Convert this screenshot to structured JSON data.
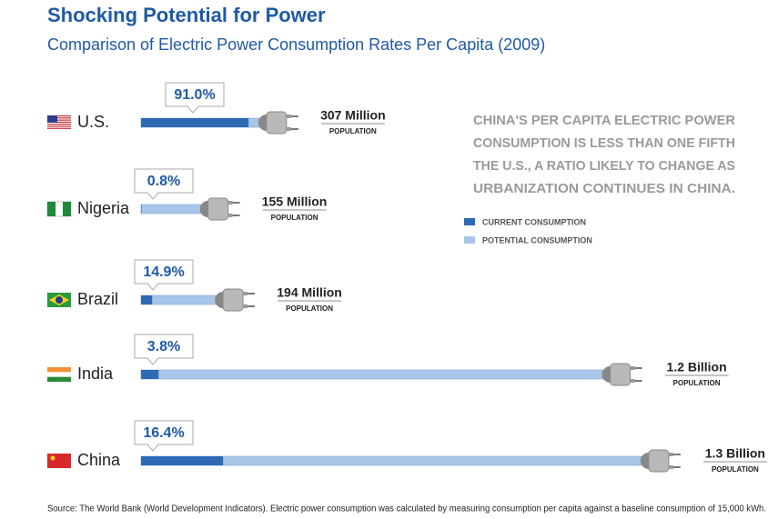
{
  "chart_data": {
    "type": "bar",
    "title": "Shocking Potential for Power",
    "subtitle": "Comparison of Electric Power Consumption Rates Per Capita (2009)",
    "categories": [
      "U.S.",
      "Nigeria",
      "Brazil",
      "India",
      "China"
    ],
    "series": [
      {
        "name": "CURRENT CONSUMPTION",
        "color": "#2e69b3",
        "values": [
          91.0,
          0.8,
          14.9,
          3.8,
          16.4
        ],
        "value_labels": [
          "91.0%",
          "0.8%",
          "14.9%",
          "3.8%",
          "16.4%"
        ]
      },
      {
        "name": "POTENTIAL CONSUMPTION",
        "color": "#a8c6e8",
        "values": [
          307,
          155,
          194,
          1200,
          1300
        ],
        "value_labels": [
          "307 Million",
          "155 Million",
          "194 Million",
          "1.2 Billion",
          "1.3 Billion"
        ]
      }
    ],
    "population_label": "POPULATION",
    "annotation": [
      "CHINA'S PER CAPITA ELECTRIC POWER",
      "CONSUMPTION IS LESS THAN ONE FIFTH",
      "THE U.S., A RATIO LIKELY TO CHANGE AS",
      "URBANIZATION CONTINUES IN CHINA."
    ],
    "source": "Source: The World Bank (World Development Indicators). Electric power consumption was calculated by measuring consumption per capita against a baseline consumption of 15,000 kWh."
  }
}
